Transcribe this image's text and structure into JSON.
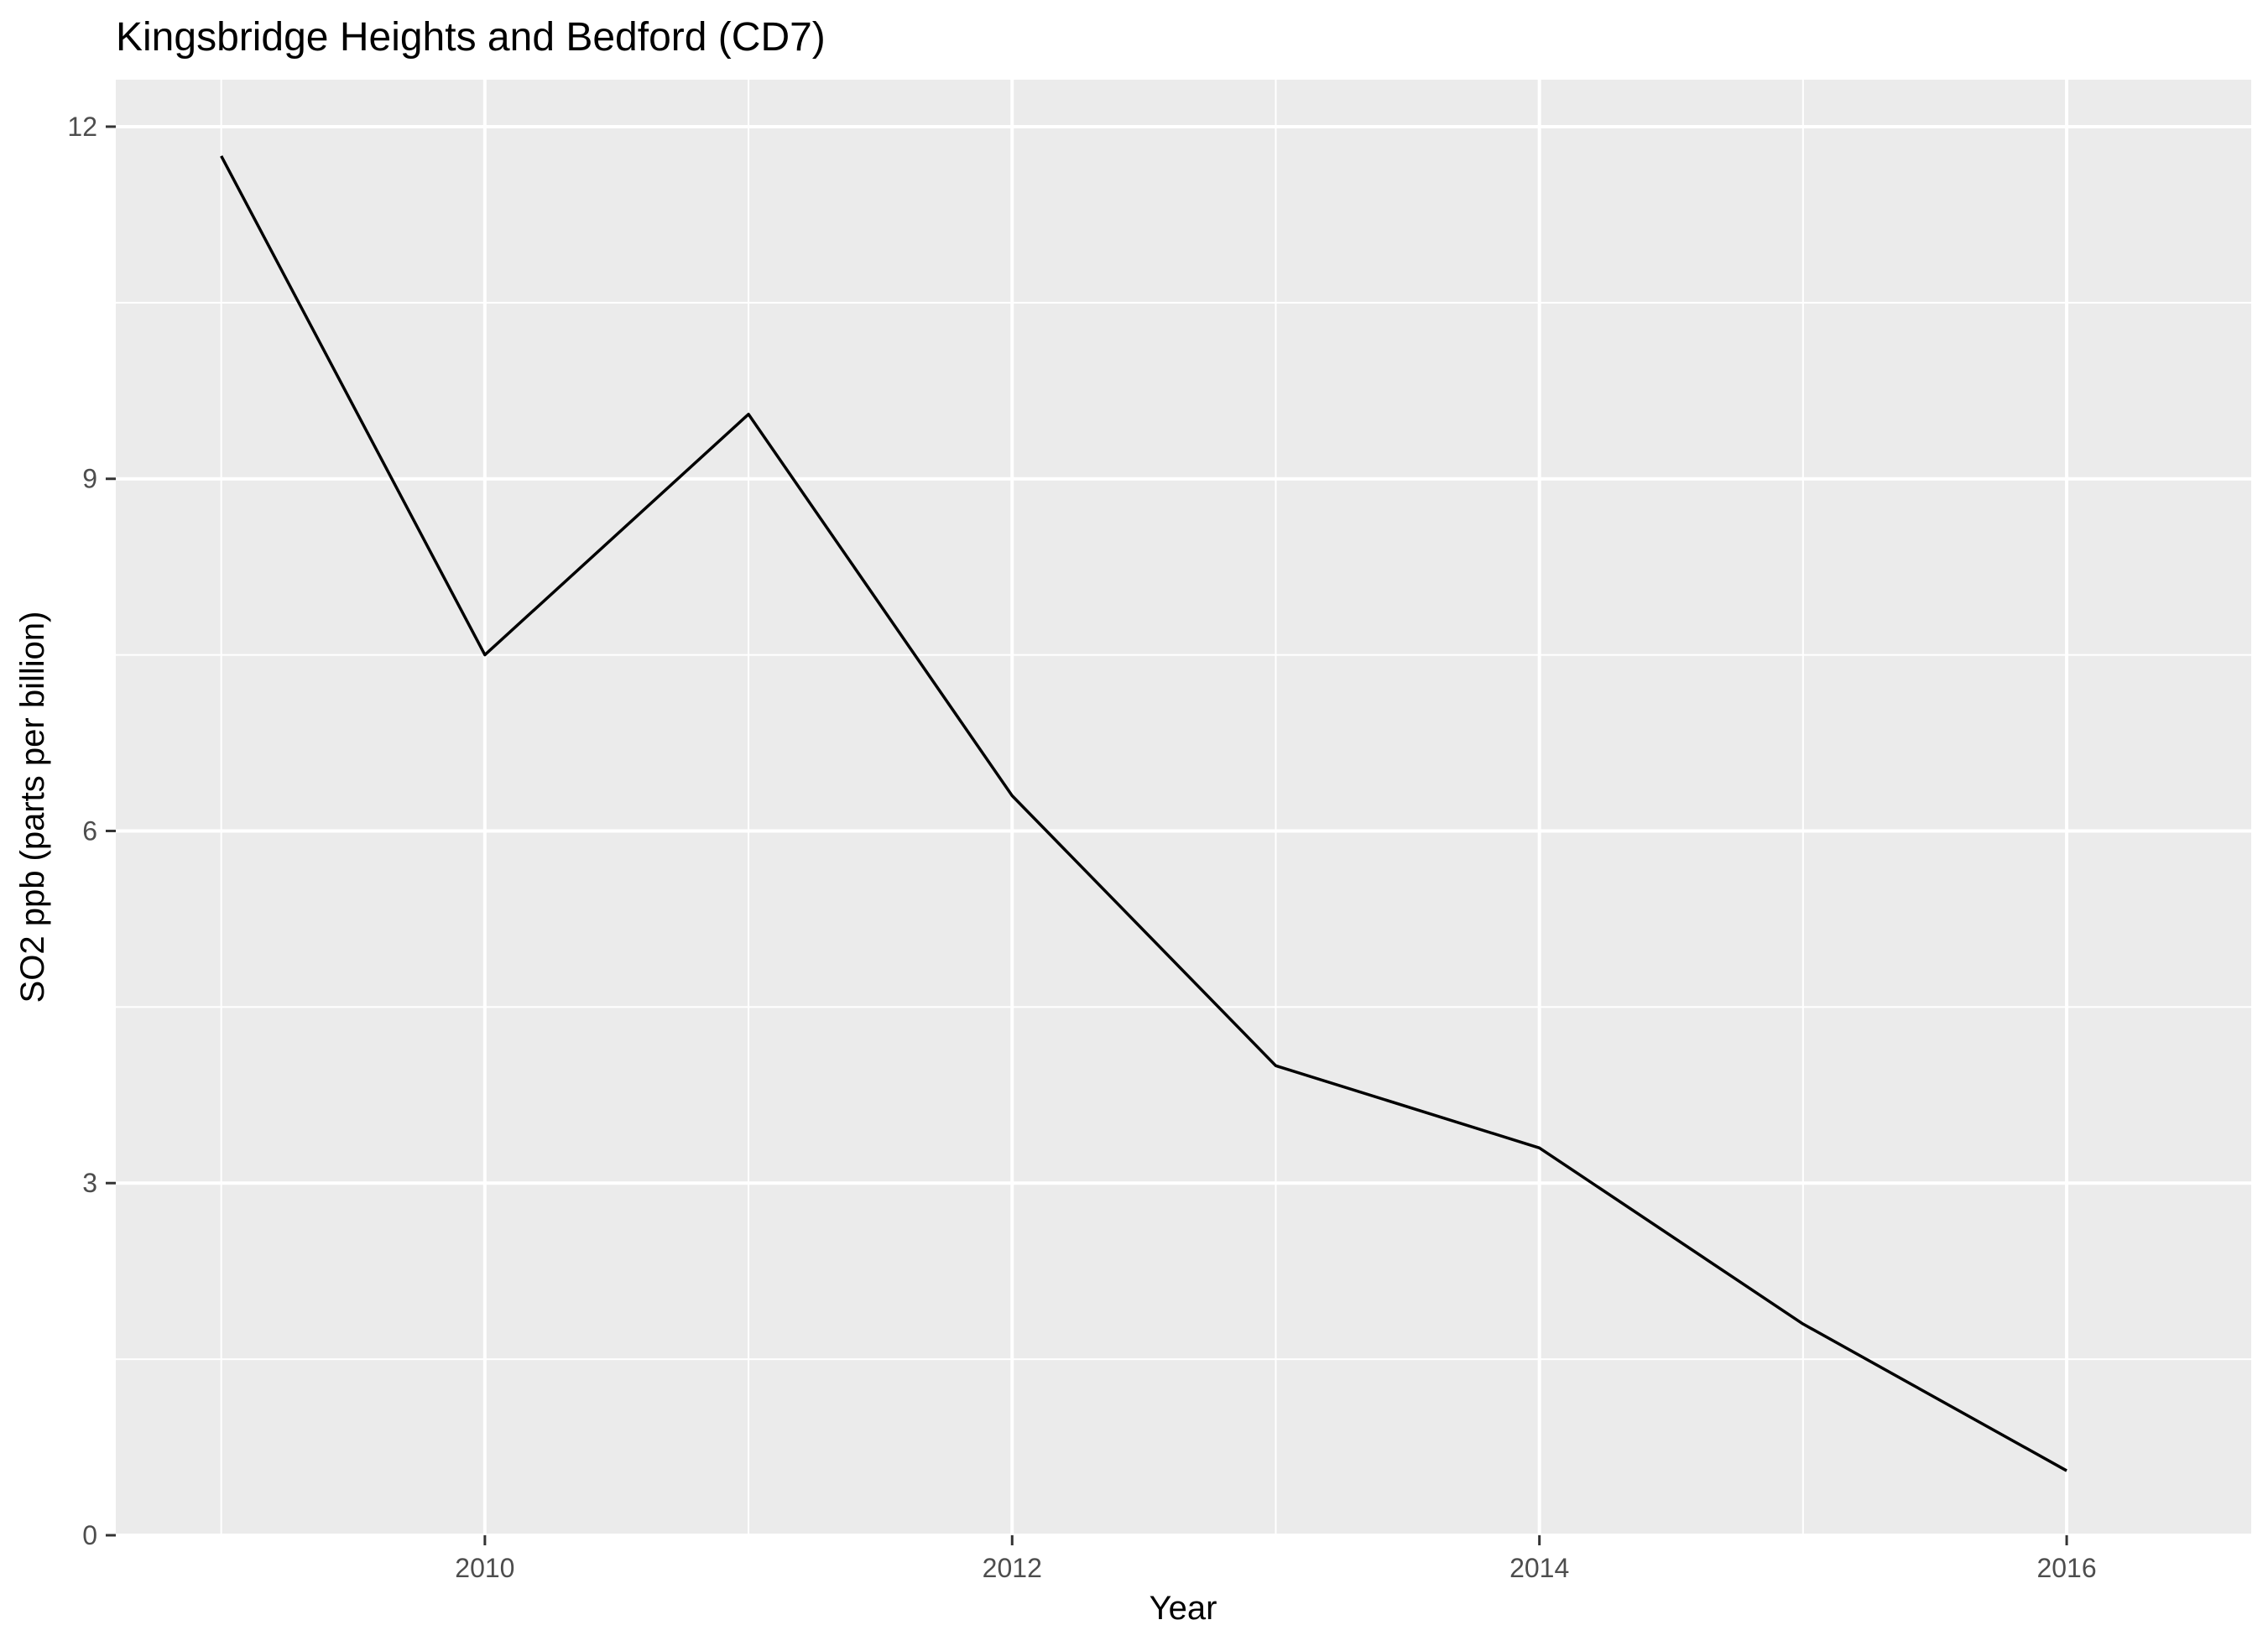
{
  "chart_data": {
    "type": "line",
    "title": "Kingsbridge Heights and Bedford (CD7)",
    "xlabel": "Year",
    "ylabel": "SO2 ppb (parts per billion)",
    "x": [
      2009,
      2010,
      2011,
      2012,
      2013,
      2014,
      2015,
      2016
    ],
    "series": [
      {
        "values": [
          11.75,
          7.5,
          9.55,
          6.3,
          4.0,
          3.3,
          1.8,
          0.55
        ],
        "color": "#000000"
      }
    ],
    "xlim": [
      2008.6,
      2016.7
    ],
    "ylim": [
      0,
      12.4
    ],
    "x_ticks": [
      2010,
      2012,
      2014,
      2016
    ],
    "x_tick_labels": [
      "2010",
      "2012",
      "2014",
      "2016"
    ],
    "x_minor_ticks": [
      2009,
      2011,
      2013,
      2015
    ],
    "y_ticks": [
      0,
      3,
      6,
      9,
      12
    ],
    "y_tick_labels": [
      "0",
      "3",
      "6",
      "9",
      "12"
    ],
    "y_minor_ticks": [
      1.5,
      4.5,
      7.5,
      10.5
    ],
    "grid": true,
    "legend": "none",
    "colors": {
      "panel_background": "#ebebeb",
      "grid_line": "#ffffff",
      "tick_text": "#4d4d4d",
      "tick_mark": "#333333",
      "line": "#000000"
    }
  }
}
